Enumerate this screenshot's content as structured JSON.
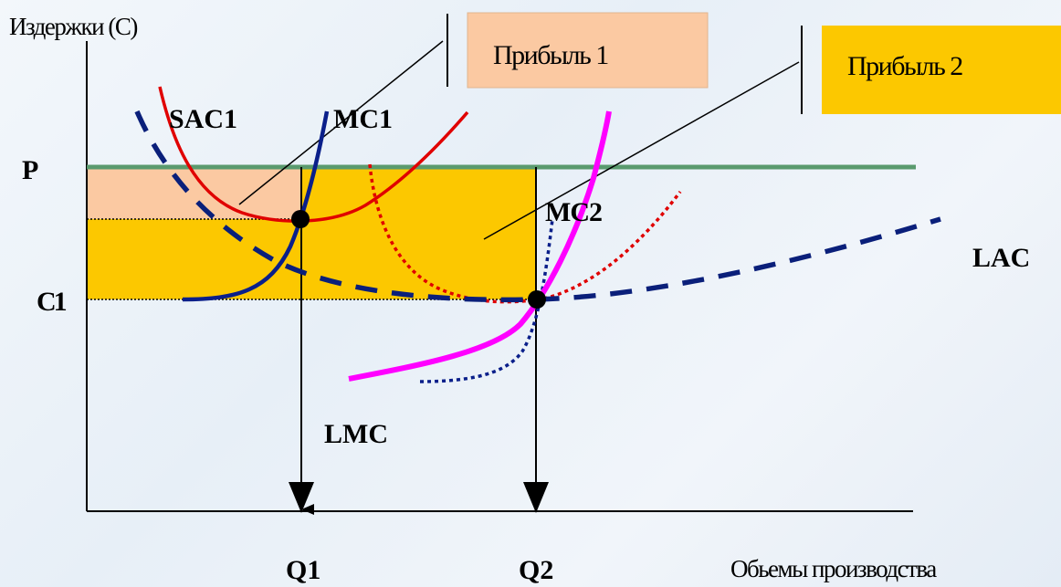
{
  "texts": {
    "y_axis_title": "Издержки (С)",
    "x_axis_title": "Обьемы производства",
    "price_label": "P",
    "cost_label": "C1",
    "q1_label": "Q1",
    "q2_label": "Q2",
    "profit1": "Прибыль 1",
    "profit2": "Прибыль 2",
    "sac1": "SAC1",
    "mc1": "MC1",
    "mc2": "MC2",
    "lac": "LAC",
    "lmc": "LMC"
  },
  "colors": {
    "profit1_fill": "#fbc9a2",
    "profit2_fill": "#fcc800",
    "price_line": "#5a9a6e",
    "sac1_curve": "#e00000",
    "mc1_curve": "#0a1f8a",
    "lac_curve": "#0a1f7a",
    "lmc_curve": "#ff00ff",
    "sac2_curve": "#e00000",
    "mc2_curve": "#0a1f8a"
  }
}
